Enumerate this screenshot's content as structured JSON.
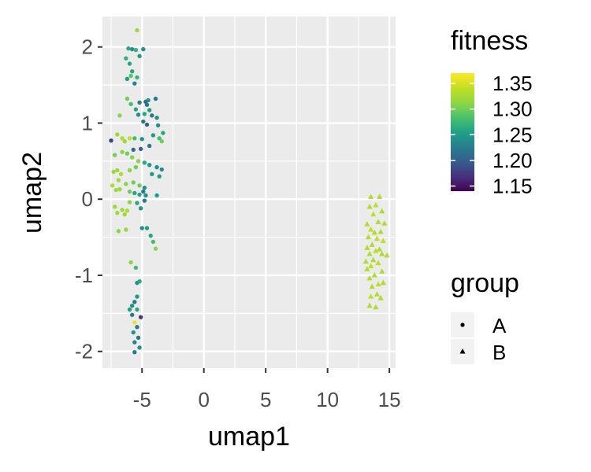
{
  "chart_data": {
    "type": "scatter",
    "title": "",
    "xlabel": "umap1",
    "ylabel": "umap2",
    "xlim": [
      -8.2,
      15.5
    ],
    "ylim": [
      -2.22,
      2.4
    ],
    "x_ticks": [
      -5,
      0,
      5,
      10,
      15
    ],
    "y_ticks": [
      2,
      1,
      0,
      -1,
      -2
    ],
    "x_tick_labels": [
      "-5",
      "0",
      "5",
      "10",
      "15"
    ],
    "y_tick_labels": [
      "2",
      "1",
      "0",
      "-1",
      "-2"
    ],
    "grid": true,
    "panel_background": "#ebebeb",
    "color_scale": {
      "title": "fitness",
      "palette": "viridis",
      "min": 1.14,
      "max": 1.37,
      "ticks": [
        1.35,
        1.3,
        1.25,
        1.2,
        1.15
      ],
      "tick_labels": [
        "1.35",
        "1.30",
        "1.25",
        "1.20",
        "1.15"
      ]
    },
    "shape_legend": {
      "title": "group",
      "entries": [
        {
          "label": "A",
          "shape": "circle"
        },
        {
          "label": "B",
          "shape": "triangle"
        }
      ]
    },
    "series": [
      {
        "name": "A",
        "shape": "circle",
        "points": [
          [
            -5.4,
            2.22,
            1.32
          ],
          [
            -6.1,
            1.98,
            1.26
          ],
          [
            -5.8,
            1.97,
            1.24
          ],
          [
            -5.5,
            1.96,
            1.27
          ],
          [
            -6.3,
            1.85,
            1.27
          ],
          [
            -6.0,
            1.78,
            1.26
          ],
          [
            -5.2,
            1.88,
            1.25
          ],
          [
            -4.9,
            1.97,
            1.24
          ],
          [
            -5.9,
            1.62,
            1.29
          ],
          [
            -5.4,
            1.6,
            1.27
          ],
          [
            -5.6,
            1.52,
            1.23
          ],
          [
            -5.8,
            1.68,
            1.26
          ],
          [
            -6.2,
            1.58,
            1.25
          ],
          [
            -5.2,
            1.27,
            1.22
          ],
          [
            -4.7,
            1.28,
            1.2
          ],
          [
            -4.5,
            1.3,
            1.24
          ],
          [
            -4.6,
            1.24,
            1.22
          ],
          [
            -4.8,
            1.12,
            1.26
          ],
          [
            -4.4,
            1.17,
            1.25
          ],
          [
            -3.9,
            1.32,
            1.22
          ],
          [
            -3.8,
            1.07,
            1.24
          ],
          [
            -4.2,
            1.1,
            1.22
          ],
          [
            -6.2,
            1.32,
            1.3
          ],
          [
            -5.9,
            1.25,
            1.28
          ],
          [
            -5.5,
            1.18,
            1.26
          ],
          [
            -5.3,
            1.11,
            1.24
          ],
          [
            -4.9,
            1.02,
            1.22
          ],
          [
            -4.6,
            0.98,
            1.2
          ],
          [
            -3.7,
            0.97,
            1.24
          ],
          [
            -3.3,
            0.87,
            1.26
          ],
          [
            -3.6,
            0.8,
            1.28
          ],
          [
            -3.4,
            0.76,
            1.3
          ],
          [
            -4.1,
            0.84,
            1.25
          ],
          [
            -4.4,
            0.7,
            1.22
          ],
          [
            -5.1,
            0.66,
            1.2
          ],
          [
            -5.7,
            0.65,
            1.21
          ],
          [
            -5.0,
            0.79,
            1.24
          ],
          [
            -5.6,
            0.8,
            1.28
          ],
          [
            -6.8,
            1.1,
            1.31
          ],
          [
            -7.5,
            0.77,
            1.18
          ],
          [
            -7.0,
            0.85,
            1.32
          ],
          [
            -6.6,
            0.8,
            1.33
          ],
          [
            -6.4,
            0.76,
            1.32
          ],
          [
            -6.0,
            0.8,
            1.34
          ],
          [
            -7.2,
            0.58,
            1.3
          ],
          [
            -6.6,
            0.62,
            1.31
          ],
          [
            -6.2,
            0.6,
            1.3
          ],
          [
            -5.8,
            0.55,
            1.31
          ],
          [
            -5.3,
            0.5,
            1.31
          ],
          [
            -4.8,
            0.48,
            1.26
          ],
          [
            -4.4,
            0.45,
            1.25
          ],
          [
            -3.8,
            0.42,
            1.24
          ],
          [
            -3.4,
            0.39,
            1.24
          ],
          [
            -3.6,
            0.3,
            1.25
          ],
          [
            -4.2,
            0.33,
            1.25
          ],
          [
            -5.5,
            0.42,
            1.3
          ],
          [
            -6.0,
            0.38,
            1.31
          ],
          [
            -7.0,
            0.38,
            1.32
          ],
          [
            -7.3,
            0.36,
            1.32
          ],
          [
            -6.7,
            0.33,
            1.33
          ],
          [
            -6.9,
            0.25,
            1.32
          ],
          [
            -7.4,
            0.18,
            1.33
          ],
          [
            -6.3,
            0.2,
            1.31
          ],
          [
            -5.7,
            0.22,
            1.3
          ],
          [
            -5.2,
            0.18,
            1.3
          ],
          [
            -4.8,
            0.15,
            1.24
          ],
          [
            -4.9,
            0.1,
            1.22
          ],
          [
            -6.8,
            0.13,
            1.32
          ],
          [
            -7.1,
            0.12,
            1.32
          ],
          [
            -6.0,
            0.1,
            1.3
          ],
          [
            -5.6,
            0.08,
            1.26
          ],
          [
            -5.2,
            0.06,
            1.26
          ],
          [
            -4.7,
            0.05,
            1.24
          ],
          [
            -3.8,
            0.05,
            1.25
          ],
          [
            -4.8,
            -0.02,
            1.22
          ],
          [
            -5.4,
            -0.05,
            1.26
          ],
          [
            -6.0,
            -0.04,
            1.31
          ],
          [
            -7.2,
            -0.1,
            1.32
          ],
          [
            -6.6,
            -0.14,
            1.32
          ],
          [
            -6.2,
            -0.15,
            1.33
          ],
          [
            -5.1,
            -0.12,
            1.24
          ],
          [
            -6.4,
            -0.2,
            1.32
          ],
          [
            -7.0,
            -0.18,
            1.32
          ],
          [
            -5.0,
            -0.38,
            1.24
          ],
          [
            -4.6,
            -0.38,
            1.25
          ],
          [
            -6.9,
            -0.42,
            1.31
          ],
          [
            -6.3,
            -0.4,
            1.32
          ],
          [
            -4.3,
            -0.48,
            1.26
          ],
          [
            -4.1,
            -0.56,
            1.28
          ],
          [
            -3.9,
            -0.65,
            1.31
          ],
          [
            -5.9,
            -0.83,
            1.31
          ],
          [
            -5.5,
            -0.9,
            1.28
          ],
          [
            -5.4,
            -1.1,
            1.24
          ],
          [
            -5.2,
            -1.08,
            1.26
          ],
          [
            -5.4,
            -1.28,
            1.25
          ],
          [
            -5.6,
            -1.35,
            1.22
          ],
          [
            -5.8,
            -1.4,
            1.24
          ],
          [
            -5.4,
            -1.45,
            1.26
          ],
          [
            -5.8,
            -1.52,
            1.22
          ],
          [
            -5.1,
            -1.55,
            1.17
          ],
          [
            -5.6,
            -1.62,
            1.36
          ],
          [
            -5.4,
            -1.68,
            1.22
          ],
          [
            -5.7,
            -1.75,
            1.24
          ],
          [
            -5.3,
            -1.82,
            1.22
          ],
          [
            -5.6,
            -1.88,
            1.23
          ],
          [
            -5.2,
            -1.95,
            1.24
          ],
          [
            -5.6,
            -2.01,
            1.22
          ],
          [
            -6.0,
            -1.45,
            1.25
          ]
        ]
      },
      {
        "name": "B",
        "shape": "triangle",
        "points": [
          [
            13.5,
            0.03,
            1.33
          ],
          [
            14.2,
            0.03,
            1.33
          ],
          [
            13.9,
            -0.08,
            1.34
          ],
          [
            13.4,
            -0.1,
            1.33
          ],
          [
            14.4,
            -0.16,
            1.33
          ],
          [
            13.7,
            -0.2,
            1.34
          ],
          [
            13.2,
            -0.33,
            1.33
          ],
          [
            14.1,
            -0.3,
            1.33
          ],
          [
            14.6,
            -0.32,
            1.33
          ],
          [
            13.5,
            -0.4,
            1.34
          ],
          [
            13.8,
            -0.44,
            1.33
          ],
          [
            14.3,
            -0.43,
            1.33
          ],
          [
            13.3,
            -0.5,
            1.33
          ],
          [
            14.0,
            -0.52,
            1.34
          ],
          [
            14.5,
            -0.55,
            1.34
          ],
          [
            13.6,
            -0.6,
            1.33
          ],
          [
            13.2,
            -0.64,
            1.33
          ],
          [
            14.2,
            -0.66,
            1.33
          ],
          [
            13.9,
            -0.68,
            1.34
          ],
          [
            13.4,
            -0.72,
            1.33
          ],
          [
            14.4,
            -0.72,
            1.33
          ],
          [
            14.8,
            -0.74,
            1.33
          ],
          [
            13.7,
            -0.8,
            1.33
          ],
          [
            13.1,
            -0.82,
            1.33
          ],
          [
            14.1,
            -0.84,
            1.34
          ],
          [
            13.5,
            -0.88,
            1.34
          ],
          [
            13.2,
            -0.92,
            1.33
          ],
          [
            14.4,
            -0.95,
            1.33
          ],
          [
            13.8,
            -1.0,
            1.33
          ],
          [
            13.4,
            -1.04,
            1.33
          ],
          [
            14.5,
            -1.1,
            1.33
          ],
          [
            14.1,
            -1.12,
            1.34
          ],
          [
            13.6,
            -1.15,
            1.33
          ],
          [
            14.0,
            -1.25,
            1.33
          ],
          [
            13.5,
            -1.28,
            1.34
          ],
          [
            14.3,
            -1.3,
            1.33
          ],
          [
            13.4,
            -1.4,
            1.33
          ],
          [
            13.9,
            -1.42,
            1.33
          ]
        ]
      }
    ]
  }
}
